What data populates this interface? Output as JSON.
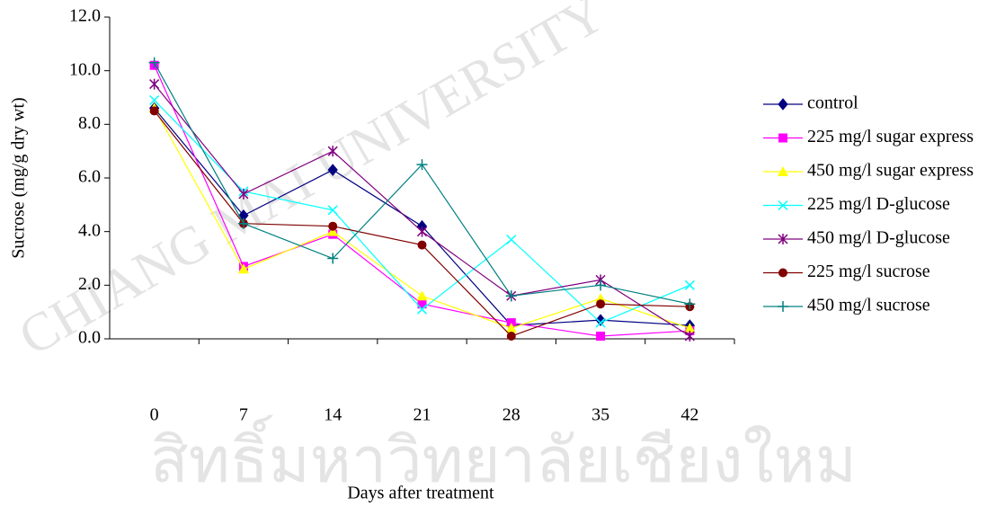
{
  "chart_data": {
    "type": "line",
    "x_label": "Days after treatment",
    "y_label": "Sucrose (mg/g dry wt)",
    "categories": [
      "0",
      "7",
      "14",
      "21",
      "28",
      "35",
      "42"
    ],
    "ylim": [
      0,
      12
    ],
    "yticks": [
      {
        "value": 0,
        "label": "0.0"
      },
      {
        "value": 2,
        "label": "2.0"
      },
      {
        "value": 4,
        "label": "4.0"
      },
      {
        "value": 6,
        "label": "6.0"
      },
      {
        "value": 8,
        "label": "8.0"
      },
      {
        "value": 10,
        "label": "10.0"
      },
      {
        "value": 12,
        "label": "12.0"
      }
    ],
    "grid": false,
    "legend": "right",
    "watermark": [
      "CHIANG MAI UNIVERSITY",
      "สิทธิ์มหาวิทยาลัยเชียงใหม"
    ],
    "series": [
      {
        "name": "control",
        "color": "#000080",
        "marker": "diamond",
        "values": [
          8.6,
          4.6,
          6.3,
          4.2,
          0.5,
          0.7,
          0.5
        ]
      },
      {
        "name": "225 mg/l sugar express",
        "color": "#ff00ff",
        "marker": "square",
        "values": [
          10.2,
          2.7,
          3.9,
          1.3,
          0.6,
          0.1,
          0.3
        ]
      },
      {
        "name": "450 mg/l sugar express",
        "color": "#ffff00",
        "marker": "triangle",
        "values": [
          8.6,
          2.6,
          4.0,
          1.6,
          0.4,
          1.5,
          0.4
        ]
      },
      {
        "name": "225 mg/l D-glucose",
        "color": "#00ffff",
        "marker": "x",
        "values": [
          8.9,
          5.5,
          4.8,
          1.1,
          3.7,
          0.6,
          2.0
        ]
      },
      {
        "name": "450 mg/l D-glucose",
        "color": "#800080",
        "marker": "star",
        "values": [
          9.5,
          5.4,
          7.0,
          4.0,
          1.6,
          2.2,
          0.1
        ]
      },
      {
        "name": "225 mg/l sucrose",
        "color": "#800000",
        "marker": "circle",
        "values": [
          8.5,
          4.3,
          4.2,
          3.5,
          0.1,
          1.3,
          1.2
        ]
      },
      {
        "name": "450 mg/l sucrose",
        "color": "#008080",
        "marker": "plus",
        "values": [
          10.3,
          4.3,
          3.0,
          6.5,
          1.6,
          2.0,
          1.3
        ]
      }
    ]
  }
}
